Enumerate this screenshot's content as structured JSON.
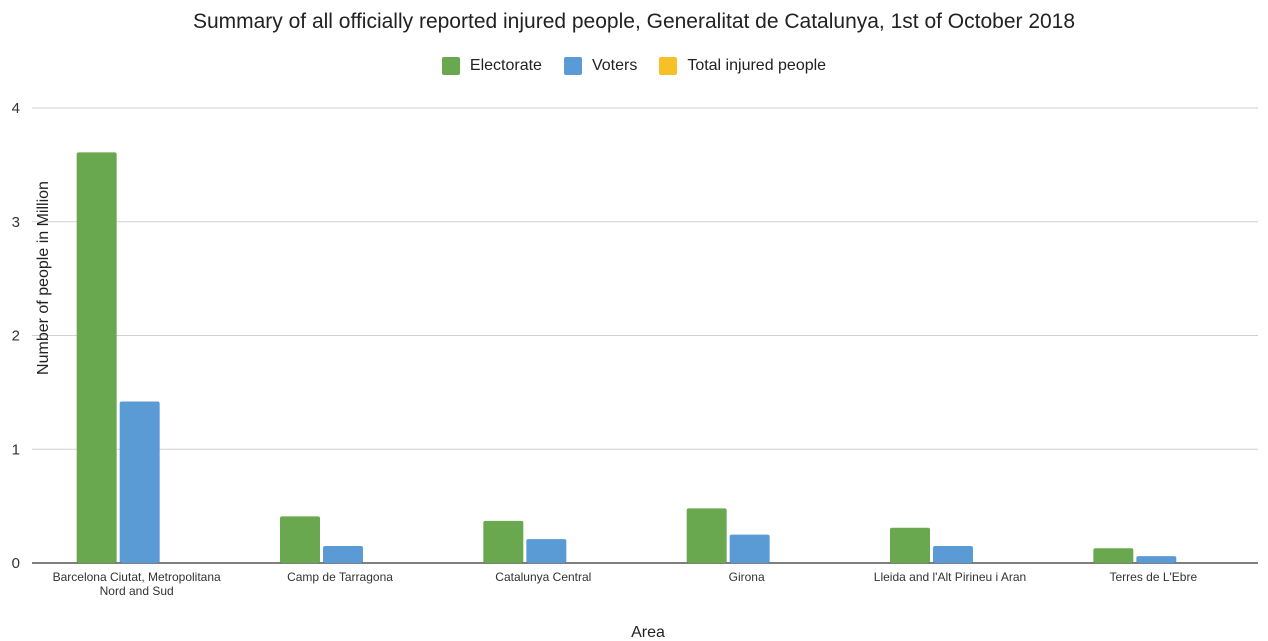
{
  "chart_data": {
    "type": "bar",
    "title": "Summary of all officially reported injured people, Generalitat de Catalunya, 1st of October 2018",
    "xlabel": "Area",
    "ylabel": "Number of people in Million",
    "ylim": [
      0,
      4
    ],
    "yticks": [
      "0",
      "1",
      "2",
      "3",
      "4"
    ],
    "grid": true,
    "legend_position": "top",
    "categories": [
      [
        "Barcelona Ciutat, Metropolitana",
        "Nord and Sud"
      ],
      [
        "Camp de Tarragona"
      ],
      [
        "Catalunya Central"
      ],
      [
        "Girona"
      ],
      [
        "Lleida and l'Alt Pirineu i Aran"
      ],
      [
        "Terres de L'Ebre"
      ]
    ],
    "series": [
      {
        "name": "Electorate",
        "color": "#6aa84f",
        "values": [
          3.61,
          0.41,
          0.37,
          0.48,
          0.31,
          0.13
        ]
      },
      {
        "name": "Voters",
        "color": "#5b9bd5",
        "values": [
          1.42,
          0.15,
          0.21,
          0.25,
          0.15,
          0.06
        ]
      },
      {
        "name": "Total injured people",
        "color": "#f6c026",
        "values": [
          0.0,
          0.0,
          0.0,
          0.0,
          0.0,
          0.0
        ]
      }
    ]
  }
}
